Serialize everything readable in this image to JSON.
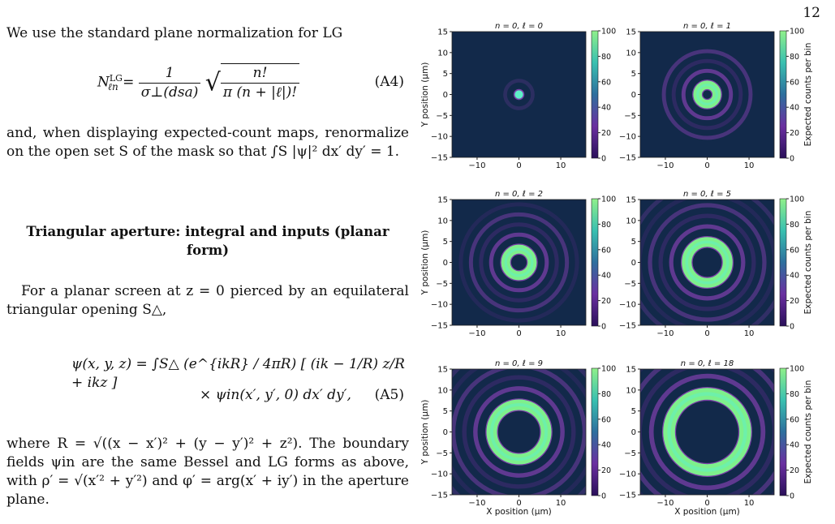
{
  "page_number": "12",
  "text": {
    "para1": "We use the standard plane normalization for LG",
    "eq_a4_lhs": "N",
    "eq_a4_sup": "LG",
    "eq_a4_sub": "ℓn",
    "eq_a4_frac_num": "1",
    "eq_a4_frac_den": "σ⊥(dsa)",
    "eq_a4_sqrt_num": "n!",
    "eq_a4_sqrt_den": "π (n + |ℓ|)!",
    "eq_a4_label": "(A4)",
    "para2": "and, when displaying expected-count maps, renormalize on the open set S of the mask so that ∫S |ψ|² dx′ dy′ = 1.",
    "heading": "Triangular aperture: integral and inputs (planar form)",
    "para3": "For a planar screen at z = 0 pierced by an equilateral triangular opening S△,",
    "eq_a5_line1": "ψ(x, y, z) = ∫S△ (e^{ikR} / 4πR) [ (ik − 1/R) z/R + ikz ]",
    "eq_a5_line2": "× ψin(x′, y′, 0) dx′ dy′,",
    "eq_a5_label": "(A5)",
    "para4": "where R = √((x − x′)² + (y − y′)² + z²). The boundary fields ψin are the same Bessel and LG forms as above, with ρ′ = √(x′² + y′²) and φ′ = arg(x′ + iy′) in the aperture plane."
  },
  "figure": {
    "y_axis_label": "Y position (μm)",
    "x_axis_label": "X position (μm)",
    "colorbar_label": "Expected counts per bin",
    "x_ticks": [
      "−10",
      "0",
      "10"
    ],
    "y_ticks": [
      "15",
      "10",
      "5",
      "0",
      "−5",
      "−10",
      "−15"
    ],
    "cb_ticks": [
      "100",
      "80",
      "60",
      "40",
      "20",
      "0"
    ],
    "colors": {
      "background": "#12294a",
      "ring": "#7ef08c",
      "ring_core": "#5ef0c8",
      "fringe": "#7b3fa8",
      "fringe_dark": "#3d2a70"
    }
  },
  "chart_data": [
    {
      "type": "heatmap",
      "title": "n = 0, ℓ = 0",
      "n": 0,
      "l": 0,
      "xlim": [
        -16,
        16
      ],
      "ylim": [
        -15,
        15
      ],
      "clim": [
        0,
        100
      ],
      "colorbar_label": ""
    },
    {
      "type": "heatmap",
      "title": "n = 0, ℓ = 1",
      "n": 0,
      "l": 1,
      "xlim": [
        -16,
        16
      ],
      "ylim": [
        -15,
        15
      ],
      "clim": [
        0,
        100
      ],
      "colorbar_label": "Expected counts per bin"
    },
    {
      "type": "heatmap",
      "title": "n = 0, ℓ = 2",
      "n": 0,
      "l": 2,
      "xlim": [
        -16,
        16
      ],
      "ylim": [
        -15,
        15
      ],
      "clim": [
        0,
        100
      ],
      "colorbar_label": ""
    },
    {
      "type": "heatmap",
      "title": "n = 0, ℓ = 5",
      "n": 0,
      "l": 5,
      "xlim": [
        -16,
        16
      ],
      "ylim": [
        -15,
        15
      ],
      "clim": [
        0,
        100
      ],
      "colorbar_label": "Expected counts per bin"
    },
    {
      "type": "heatmap",
      "title": "n = 0, ℓ = 9",
      "n": 0,
      "l": 9,
      "xlim": [
        -16,
        16
      ],
      "ylim": [
        -15,
        15
      ],
      "clim": [
        0,
        100
      ],
      "colorbar_label": ""
    },
    {
      "type": "heatmap",
      "title": "n = 0, ℓ = 18",
      "n": 0,
      "l": 18,
      "xlim": [
        -16,
        16
      ],
      "ylim": [
        -15,
        15
      ],
      "clim": [
        0,
        100
      ],
      "colorbar_label": "Expected counts per bin"
    }
  ]
}
